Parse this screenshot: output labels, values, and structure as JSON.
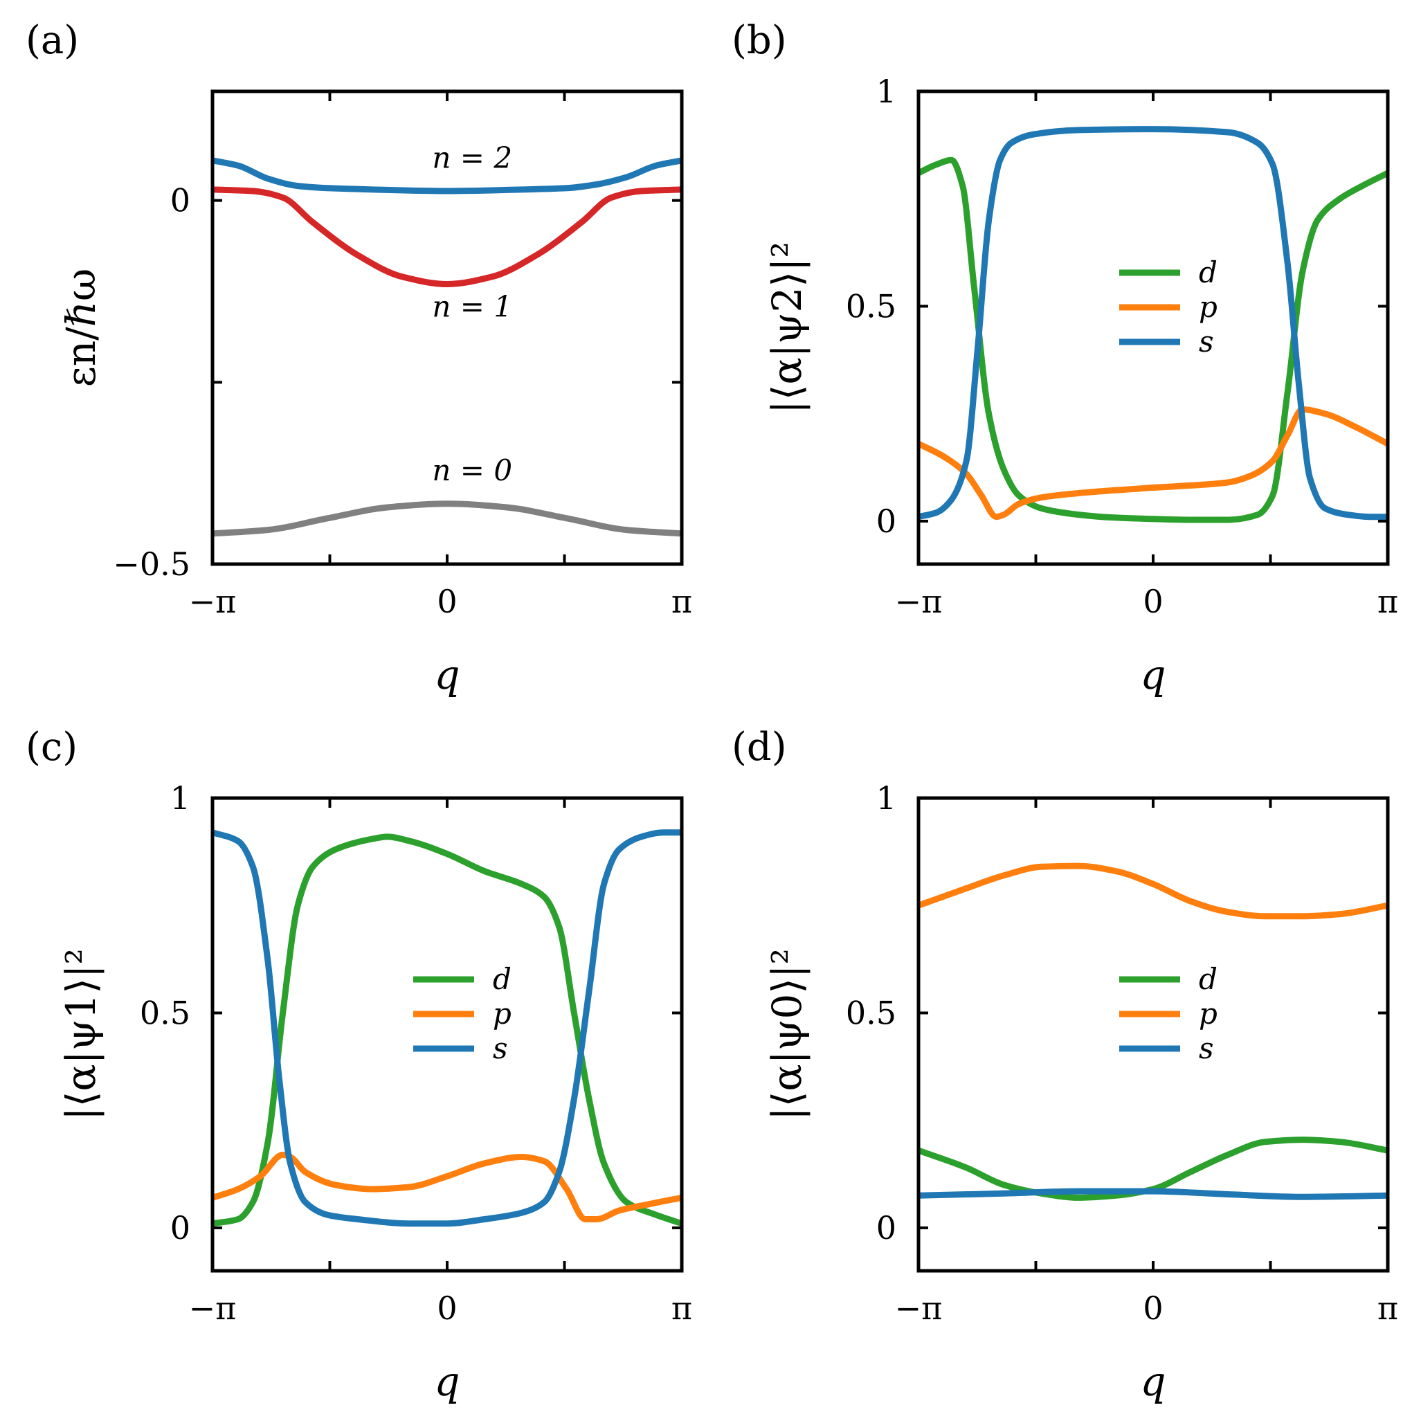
{
  "colors": {
    "d": "#2ca02c",
    "p": "#ff7f0e",
    "s": "#1f77b4",
    "n0": "#808080",
    "n1": "#d62728",
    "n2": "#1f77b4"
  },
  "chart_data": [
    {
      "panel": "(a)",
      "type": "line",
      "xlabel": "q",
      "ylabel": "εn/ℏω",
      "xlim": [
        -3.1416,
        3.1416
      ],
      "ylim": [
        -0.5,
        0.15
      ],
      "xticks": [
        {
          "v": -3.1416,
          "label": "−π"
        },
        {
          "v": 0,
          "label": "0"
        },
        {
          "v": 3.1416,
          "label": "π"
        }
      ],
      "yticks": [
        {
          "v": 0,
          "label": "0"
        },
        {
          "v": -0.5,
          "label": "−0.5"
        }
      ],
      "yminor": [
        -0.25
      ],
      "xminor": [
        -1.5708,
        1.5708
      ],
      "annotations": [
        {
          "text": "n = 2",
          "x": -0.2,
          "y": 0.045
        },
        {
          "text": "n = 1",
          "x": -0.2,
          "y": -0.16
        },
        {
          "text": "n = 0",
          "x": -0.2,
          "y": -0.385
        }
      ],
      "series": [
        {
          "name": "n = 2",
          "color": "#1f77b4",
          "x": [
            -3.1416,
            -2.8,
            -2.4,
            -2.0,
            -1.6,
            -1.0,
            0,
            1.0,
            1.6,
            2.0,
            2.4,
            2.8,
            3.1416
          ],
          "y": [
            0.055,
            0.048,
            0.03,
            0.02,
            0.017,
            0.015,
            0.013,
            0.015,
            0.017,
            0.022,
            0.032,
            0.048,
            0.055
          ]
        },
        {
          "name": "n = 1",
          "color": "#d62728",
          "x": [
            -3.1416,
            -2.6,
            -2.2,
            -1.8,
            -1.2,
            -0.6,
            0,
            0.6,
            1.2,
            1.8,
            2.2,
            2.6,
            3.1416
          ],
          "y": [
            0.015,
            0.013,
            0.004,
            -0.03,
            -0.075,
            -0.105,
            -0.115,
            -0.105,
            -0.075,
            -0.03,
            0.004,
            0.013,
            0.015
          ]
        },
        {
          "name": "n = 0",
          "color": "#808080",
          "x": [
            -3.1416,
            -2.4,
            -1.6,
            -0.8,
            0,
            0.8,
            1.6,
            2.4,
            3.1416
          ],
          "y": [
            -0.458,
            -0.453,
            -0.437,
            -0.422,
            -0.417,
            -0.422,
            -0.437,
            -0.453,
            -0.458
          ]
        }
      ]
    },
    {
      "panel": "(b)",
      "type": "line",
      "xlabel": "q",
      "ylabel": "|⟨α|ψ2⟩|²",
      "xlim": [
        -3.1416,
        3.1416
      ],
      "ylim": [
        -0.1,
        1.0
      ],
      "xticks": [
        {
          "v": -3.1416,
          "label": "−π"
        },
        {
          "v": 0,
          "label": "0"
        },
        {
          "v": 3.1416,
          "label": "π"
        }
      ],
      "yticks": [
        {
          "v": 0,
          "label": "0"
        },
        {
          "v": 0.5,
          "label": "0.5"
        },
        {
          "v": 1,
          "label": "1"
        }
      ],
      "xminor": [
        -1.5708,
        1.5708
      ],
      "legend": [
        "d",
        "p",
        "s"
      ],
      "series": [
        {
          "name": "d",
          "color": "#2ca02c",
          "x": [
            -3.1416,
            -2.9,
            -2.7,
            -2.55,
            -2.4,
            -2.2,
            -2.0,
            -1.8,
            -1.5,
            -1.0,
            -0.5,
            0,
            0.5,
            1.0,
            1.4,
            1.6,
            1.8,
            2.0,
            2.2,
            2.5,
            2.8,
            3.1416
          ],
          "y": [
            0.81,
            0.83,
            0.84,
            0.78,
            0.55,
            0.25,
            0.12,
            0.06,
            0.03,
            0.015,
            0.008,
            0.005,
            0.003,
            0.003,
            0.015,
            0.06,
            0.3,
            0.58,
            0.7,
            0.75,
            0.78,
            0.81
          ]
        },
        {
          "name": "p",
          "color": "#ff7f0e",
          "x": [
            -3.1416,
            -2.8,
            -2.5,
            -2.3,
            -2.1,
            -2.0,
            -1.8,
            -1.5,
            -1.0,
            -0.5,
            0,
            0.5,
            1.0,
            1.3,
            1.6,
            1.8,
            2.0,
            2.3,
            2.7,
            3.1416
          ],
          "y": [
            0.18,
            0.15,
            0.11,
            0.06,
            0.01,
            0.015,
            0.04,
            0.055,
            0.065,
            0.072,
            0.078,
            0.083,
            0.09,
            0.105,
            0.14,
            0.2,
            0.26,
            0.25,
            0.22,
            0.18
          ]
        },
        {
          "name": "s",
          "color": "#1f77b4",
          "x": [
            -3.1416,
            -2.9,
            -2.7,
            -2.5,
            -2.35,
            -2.2,
            -2.05,
            -1.9,
            -1.6,
            -1.0,
            0,
            1.0,
            1.4,
            1.6,
            1.8,
            1.95,
            2.1,
            2.3,
            2.6,
            2.9,
            3.1416
          ],
          "y": [
            0.01,
            0.02,
            0.05,
            0.14,
            0.4,
            0.7,
            0.84,
            0.88,
            0.9,
            0.91,
            0.912,
            0.905,
            0.88,
            0.83,
            0.6,
            0.32,
            0.1,
            0.03,
            0.015,
            0.01,
            0.01
          ]
        }
      ]
    },
    {
      "panel": "(c)",
      "type": "line",
      "xlabel": "q",
      "ylabel": "|⟨α|ψ1⟩|²",
      "xlim": [
        -3.1416,
        3.1416
      ],
      "ylim": [
        -0.1,
        1.0
      ],
      "xticks": [
        {
          "v": -3.1416,
          "label": "−π"
        },
        {
          "v": 0,
          "label": "0"
        },
        {
          "v": 3.1416,
          "label": "π"
        }
      ],
      "yticks": [
        {
          "v": 0,
          "label": "0"
        },
        {
          "v": 0.5,
          "label": "0.5"
        },
        {
          "v": 1,
          "label": "1"
        }
      ],
      "xminor": [
        -1.5708,
        1.5708
      ],
      "legend": [
        "d",
        "p",
        "s"
      ],
      "series": [
        {
          "name": "d",
          "color": "#2ca02c",
          "x": [
            -3.1416,
            -2.8,
            -2.6,
            -2.4,
            -2.2,
            -2.0,
            -1.8,
            -1.5,
            -1.0,
            -0.8,
            -0.5,
            0,
            0.5,
            1.0,
            1.3,
            1.5,
            1.7,
            1.9,
            2.1,
            2.4,
            2.8,
            3.1416
          ],
          "y": [
            0.01,
            0.02,
            0.06,
            0.2,
            0.5,
            0.75,
            0.84,
            0.88,
            0.905,
            0.91,
            0.9,
            0.87,
            0.83,
            0.8,
            0.77,
            0.7,
            0.5,
            0.3,
            0.15,
            0.06,
            0.03,
            0.01
          ]
        },
        {
          "name": "p",
          "color": "#ff7f0e",
          "x": [
            -3.1416,
            -2.8,
            -2.5,
            -2.2,
            -2.1,
            -1.9,
            -1.5,
            -1.0,
            -0.5,
            0,
            0.5,
            1.0,
            1.3,
            1.6,
            1.85,
            2.0,
            2.3,
            2.7,
            3.1416
          ],
          "y": [
            0.07,
            0.09,
            0.12,
            0.17,
            0.165,
            0.13,
            0.1,
            0.09,
            0.095,
            0.12,
            0.15,
            0.165,
            0.155,
            0.09,
            0.02,
            0.02,
            0.04,
            0.055,
            0.07
          ]
        },
        {
          "name": "s",
          "color": "#1f77b4",
          "x": [
            -3.1416,
            -2.8,
            -2.6,
            -2.4,
            -2.25,
            -2.1,
            -1.9,
            -1.6,
            -1.2,
            -0.5,
            0,
            0.5,
            1.0,
            1.3,
            1.5,
            1.7,
            1.9,
            2.1,
            2.3,
            2.6,
            2.9,
            3.1416
          ],
          "y": [
            0.92,
            0.9,
            0.84,
            0.62,
            0.35,
            0.15,
            0.06,
            0.03,
            0.02,
            0.01,
            0.01,
            0.02,
            0.035,
            0.06,
            0.13,
            0.3,
            0.55,
            0.8,
            0.88,
            0.91,
            0.92,
            0.92
          ]
        }
      ]
    },
    {
      "panel": "(d)",
      "type": "line",
      "xlabel": "q",
      "ylabel": "|⟨α|ψ0⟩|²",
      "xlim": [
        -3.1416,
        3.1416
      ],
      "ylim": [
        -0.1,
        1.0
      ],
      "xticks": [
        {
          "v": -3.1416,
          "label": "−π"
        },
        {
          "v": 0,
          "label": "0"
        },
        {
          "v": 3.1416,
          "label": "π"
        }
      ],
      "yticks": [
        {
          "v": 0,
          "label": "0"
        },
        {
          "v": 0.5,
          "label": "0.5"
        },
        {
          "v": 1,
          "label": "1"
        }
      ],
      "xminor": [
        -1.5708,
        1.5708
      ],
      "legend": [
        "d",
        "p",
        "s"
      ],
      "series": [
        {
          "name": "d",
          "color": "#2ca02c",
          "x": [
            -3.1416,
            -2.5,
            -2.0,
            -1.5,
            -1.0,
            -0.5,
            0,
            0.5,
            1.0,
            1.5,
            2.0,
            2.5,
            3.1416
          ],
          "y": [
            0.18,
            0.14,
            0.1,
            0.08,
            0.07,
            0.075,
            0.09,
            0.13,
            0.17,
            0.2,
            0.205,
            0.2,
            0.18
          ]
        },
        {
          "name": "p",
          "color": "#ff7f0e",
          "x": [
            -3.1416,
            -2.5,
            -2.0,
            -1.5,
            -1.0,
            -0.5,
            0,
            0.5,
            1.0,
            1.5,
            2.0,
            2.5,
            3.1416
          ],
          "y": [
            0.75,
            0.79,
            0.82,
            0.84,
            0.842,
            0.83,
            0.8,
            0.76,
            0.735,
            0.725,
            0.725,
            0.73,
            0.75
          ]
        },
        {
          "name": "s",
          "color": "#1f77b4",
          "x": [
            -3.1416,
            -2.0,
            -1.0,
            0,
            1.0,
            2.0,
            3.1416
          ],
          "y": [
            0.075,
            0.08,
            0.085,
            0.085,
            0.078,
            0.072,
            0.075
          ]
        }
      ]
    }
  ]
}
